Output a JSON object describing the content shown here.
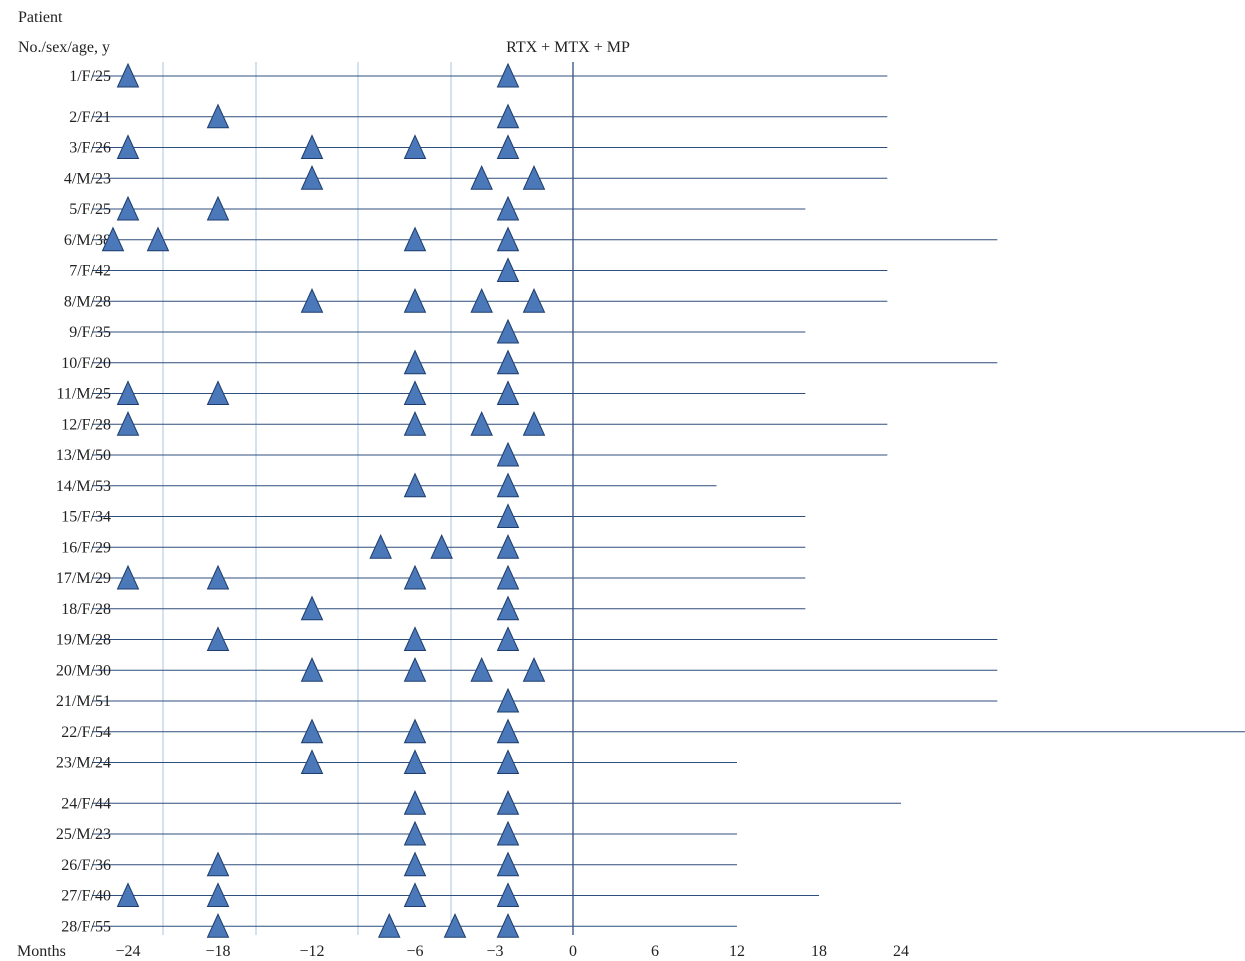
{
  "chart_data": {
    "type": "timeline",
    "title": "",
    "header": {
      "line1": "Patient",
      "line2": "No./sex/age, y"
    },
    "annotation": "RTX + MTX + MP",
    "xlabel": "Months",
    "xticks": [
      "−24",
      "−18",
      "−12",
      "−6",
      "−3",
      "0",
      "6",
      "12",
      "18",
      "24"
    ],
    "colors": {
      "marker_fill": "#4a78b8",
      "marker_stroke": "#1e3d6e",
      "line": "#2f4f7f",
      "grid": "#aac4e0"
    },
    "patients": [
      {
        "label": "1/F/25",
        "events": [
          -24,
          -2.5
        ],
        "followup_end": 23
      },
      {
        "label": "2/F/21",
        "events": [
          -18,
          -2.5
        ],
        "followup_end": 23
      },
      {
        "label": "3/F/26",
        "events": [
          -24,
          -12,
          -6,
          -2.5
        ],
        "followup_end": 23
      },
      {
        "label": "4/M/23",
        "events": [
          -12,
          -3.5,
          -1.5
        ],
        "followup_end": 23
      },
      {
        "label": "5/F/25",
        "events": [
          -24,
          -18,
          -2.5
        ],
        "followup_end": 17
      },
      {
        "label": "6/M/38",
        "events": [
          -25,
          -22,
          -6,
          -2.5
        ],
        "followup_end": 31
      },
      {
        "label": "7/F/42",
        "events": [
          -2.5
        ],
        "followup_end": 23
      },
      {
        "label": "8/M/28",
        "events": [
          -12,
          -6,
          -3.5,
          -1.5
        ],
        "followup_end": 23
      },
      {
        "label": "9/F/35",
        "events": [
          -2.5
        ],
        "followup_end": 17
      },
      {
        "label": "10/F/20",
        "events": [
          -6,
          -2.5
        ],
        "followup_end": 31
      },
      {
        "label": "11/M/25",
        "events": [
          -24,
          -18,
          -6,
          -2.5
        ],
        "followup_end": 17
      },
      {
        "label": "12/F/28",
        "events": [
          -24,
          -6,
          -3.5,
          -1.5
        ],
        "followup_end": 23
      },
      {
        "label": "13/M/50",
        "events": [
          -2.5
        ],
        "followup_end": 23
      },
      {
        "label": "14/M/53",
        "events": [
          -6,
          -2.5
        ],
        "followup_end": 10.5
      },
      {
        "label": "15/F/34",
        "events": [
          -2.5
        ],
        "followup_end": 17
      },
      {
        "label": "16/F/29",
        "events": [
          -8,
          -5,
          -2.5
        ],
        "followup_end": 17
      },
      {
        "label": "17/M/29",
        "events": [
          -24,
          -18,
          -6,
          -2.5
        ],
        "followup_end": 17
      },
      {
        "label": "18/F/28",
        "events": [
          -12,
          -2.5
        ],
        "followup_end": 17
      },
      {
        "label": "19/M/28",
        "events": [
          -18,
          -6,
          -2.5
        ],
        "followup_end": 31
      },
      {
        "label": "20/M/30",
        "events": [
          -12,
          -6,
          -3.5,
          -1.5
        ],
        "followup_end": 31
      },
      {
        "label": "21/M/51",
        "events": [
          -2.5
        ],
        "followup_end": 31
      },
      {
        "label": "22/F/54",
        "events": [
          -12,
          -6,
          -2.5
        ],
        "followup_end": 49
      },
      {
        "label": "23/M/24",
        "events": [
          -12,
          -6,
          -2.5
        ],
        "followup_end": 12
      },
      {
        "label": "24/F/44",
        "events": [
          -6,
          -2.5
        ],
        "followup_end": 24
      },
      {
        "label": "25/M/23",
        "events": [
          -6,
          -2.5
        ],
        "followup_end": 12
      },
      {
        "label": "26/F/36",
        "events": [
          -18,
          -6,
          -2.5
        ],
        "followup_end": 12
      },
      {
        "label": "27/F/40",
        "events": [
          -24,
          -18,
          -6,
          -2.5
        ],
        "followup_end": 18
      },
      {
        "label": "28/F/55",
        "events": [
          -18,
          -7.5,
          -4.5,
          -2.5
        ],
        "followup_end": 12
      }
    ]
  }
}
